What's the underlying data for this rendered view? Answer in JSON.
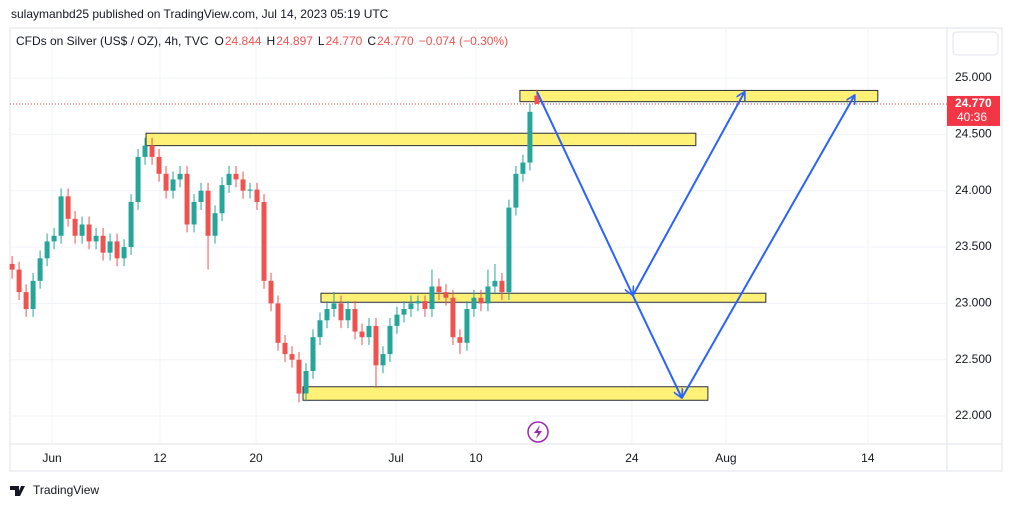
{
  "header": {
    "publisher": "sulaymanbd25 published on TradingView.com, Jul 14, 2023 05:19 UTC",
    "brand": "TradingView"
  },
  "chart_data": {
    "type": "candlestick",
    "title": "CFDs on Silver (US$ / OZ), 4h, TVC",
    "legend": {
      "o_key": "O",
      "o": "24.844",
      "h_key": "H",
      "h": "24.897",
      "l_key": "L",
      "l": "24.770",
      "c_key": "C",
      "c": "24.770",
      "change": "−0.074 (−0.30%)"
    },
    "up_color": "#26a69a",
    "down_color": "#ef5350",
    "ohlc": [
      [
        23.35,
        23.42,
        23.22,
        23.3
      ],
      [
        23.3,
        23.37,
        23.03,
        23.1
      ],
      [
        23.1,
        23.17,
        22.88,
        22.95
      ],
      [
        22.95,
        23.27,
        22.88,
        23.2
      ],
      [
        23.2,
        23.47,
        23.13,
        23.4
      ],
      [
        23.4,
        23.62,
        23.33,
        23.55
      ],
      [
        23.55,
        23.67,
        23.48,
        23.6
      ],
      [
        23.6,
        24.02,
        23.53,
        23.95
      ],
      [
        23.95,
        24.02,
        23.68,
        23.75
      ],
      [
        23.75,
        23.82,
        23.53,
        23.6
      ],
      [
        23.6,
        23.77,
        23.53,
        23.7
      ],
      [
        23.7,
        23.77,
        23.48,
        23.55
      ],
      [
        23.55,
        23.67,
        23.48,
        23.6
      ],
      [
        23.6,
        23.67,
        23.38,
        23.45
      ],
      [
        23.45,
        23.62,
        23.38,
        23.55
      ],
      [
        23.55,
        23.62,
        23.33,
        23.4
      ],
      [
        23.4,
        23.57,
        23.33,
        23.5
      ],
      [
        23.5,
        23.97,
        23.43,
        23.9
      ],
      [
        23.9,
        24.37,
        23.83,
        24.3
      ],
      [
        24.3,
        24.47,
        24.23,
        24.4
      ],
      [
        24.4,
        24.47,
        24.23,
        24.3
      ],
      [
        24.3,
        24.37,
        24.08,
        24.15
      ],
      [
        24.15,
        24.22,
        23.93,
        24.0
      ],
      [
        24.0,
        24.17,
        23.93,
        24.1
      ],
      [
        24.1,
        24.22,
        24.03,
        24.15
      ],
      [
        24.15,
        24.22,
        23.63,
        23.7
      ],
      [
        23.7,
        23.97,
        23.63,
        23.9
      ],
      [
        23.9,
        24.07,
        23.83,
        24.0
      ],
      [
        24.0,
        24.07,
        23.3,
        23.6
      ],
      [
        23.6,
        23.87,
        23.53,
        23.8
      ],
      [
        23.8,
        24.12,
        23.73,
        24.05
      ],
      [
        24.05,
        24.22,
        23.98,
        24.15
      ],
      [
        24.15,
        24.22,
        24.03,
        24.1
      ],
      [
        24.1,
        24.17,
        23.93,
        24.0
      ],
      [
        24.0,
        24.07,
        23.93,
        24.01
      ],
      [
        24.01,
        24.07,
        23.83,
        23.9
      ],
      [
        23.9,
        23.97,
        23.13,
        23.2
      ],
      [
        23.2,
        23.27,
        22.93,
        23.0
      ],
      [
        23.0,
        23.07,
        22.58,
        22.65
      ],
      [
        22.65,
        22.72,
        22.48,
        22.55
      ],
      [
        22.55,
        22.62,
        22.43,
        22.5
      ],
      [
        22.5,
        22.57,
        22.12,
        22.2
      ],
      [
        22.2,
        22.47,
        22.13,
        22.4
      ],
      [
        22.4,
        22.77,
        22.33,
        22.7
      ],
      [
        22.7,
        22.92,
        22.63,
        22.85
      ],
      [
        22.85,
        23.02,
        22.78,
        22.95
      ],
      [
        22.95,
        23.1,
        22.88,
        23.0
      ],
      [
        23.0,
        23.07,
        22.78,
        22.85
      ],
      [
        22.85,
        23.02,
        22.78,
        22.95
      ],
      [
        22.95,
        23.02,
        22.68,
        22.75
      ],
      [
        22.75,
        22.82,
        22.63,
        22.7
      ],
      [
        22.7,
        22.87,
        22.63,
        22.8
      ],
      [
        22.8,
        22.87,
        22.25,
        22.45
      ],
      [
        22.45,
        22.62,
        22.38,
        22.55
      ],
      [
        22.55,
        22.87,
        22.48,
        22.8
      ],
      [
        22.8,
        22.97,
        22.73,
        22.9
      ],
      [
        22.9,
        23.02,
        22.83,
        22.95
      ],
      [
        22.95,
        23.07,
        22.88,
        23.0
      ],
      [
        23.0,
        23.07,
        22.93,
        23.02
      ],
      [
        23.02,
        23.07,
        22.88,
        22.95
      ],
      [
        22.95,
        23.3,
        22.88,
        23.15
      ],
      [
        23.15,
        23.22,
        23.03,
        23.1
      ],
      [
        23.1,
        23.17,
        22.98,
        23.05
      ],
      [
        23.05,
        23.12,
        22.63,
        22.7
      ],
      [
        22.7,
        22.77,
        22.55,
        22.65
      ],
      [
        22.65,
        23.02,
        22.58,
        22.95
      ],
      [
        22.95,
        23.12,
        22.88,
        23.05
      ],
      [
        23.05,
        23.12,
        22.93,
        23.0
      ],
      [
        23.0,
        23.3,
        22.93,
        23.15
      ],
      [
        23.15,
        23.35,
        23.08,
        23.2
      ],
      [
        23.2,
        23.27,
        23.03,
        23.1
      ],
      [
        23.1,
        23.92,
        23.03,
        23.85
      ],
      [
        23.85,
        24.22,
        23.78,
        24.15
      ],
      [
        24.15,
        24.32,
        24.08,
        24.25
      ],
      [
        24.25,
        24.77,
        24.18,
        24.7
      ],
      [
        24.844,
        24.897,
        24.77,
        24.77
      ]
    ],
    "xlim": [
      -0.3,
      133.6
    ],
    "xticks": [
      {
        "value": 5.71,
        "label": "Jun"
      },
      {
        "value": 21.14,
        "label": "12"
      },
      {
        "value": 34.86,
        "label": "20"
      },
      {
        "value": 54.86,
        "label": "Jul"
      },
      {
        "value": 66.29,
        "label": "10"
      },
      {
        "value": 88.57,
        "label": "24"
      },
      {
        "value": 102,
        "label": "Aug"
      },
      {
        "value": 122.29,
        "label": "14"
      }
    ],
    "ylim": [
      21.752,
      25.444
    ],
    "yticks": [
      {
        "value": 22,
        "label": "22.000"
      },
      {
        "value": 22.5,
        "label": "22.500"
      },
      {
        "value": 23,
        "label": "23.000"
      },
      {
        "value": 23.5,
        "label": "23.500"
      },
      {
        "value": 24,
        "label": "24.000"
      },
      {
        "value": 24.5,
        "label": "24.500"
      },
      {
        "value": 25,
        "label": "25.000"
      }
    ],
    "grid": true,
    "last_price": {
      "value": 24.77,
      "label": "24.770",
      "countdown": "40:36",
      "color": "#f23645"
    },
    "zones": [
      {
        "x": [
          72.57,
          123.71
        ],
        "y": [
          24.79,
          24.89
        ]
      },
      {
        "x": [
          19.14,
          97.71
        ],
        "y": [
          24.4,
          24.51
        ]
      },
      {
        "x": [
          44.14,
          107.71
        ],
        "y": [
          23.01,
          23.09
        ]
      },
      {
        "x": [
          41.57,
          99.43
        ],
        "y": [
          22.14,
          22.26
        ]
      }
    ],
    "zone_color": "#fff176",
    "arrows": [
      {
        "x": [
          75,
          88.71,
          104.71
        ],
        "y": [
          24.88,
          23.07,
          24.88
        ]
      },
      {
        "x": [
          88.71,
          95.71,
          120.43
        ],
        "y": [
          23.07,
          22.16,
          24.85
        ]
      }
    ],
    "arrow_color": "#2962ff"
  }
}
